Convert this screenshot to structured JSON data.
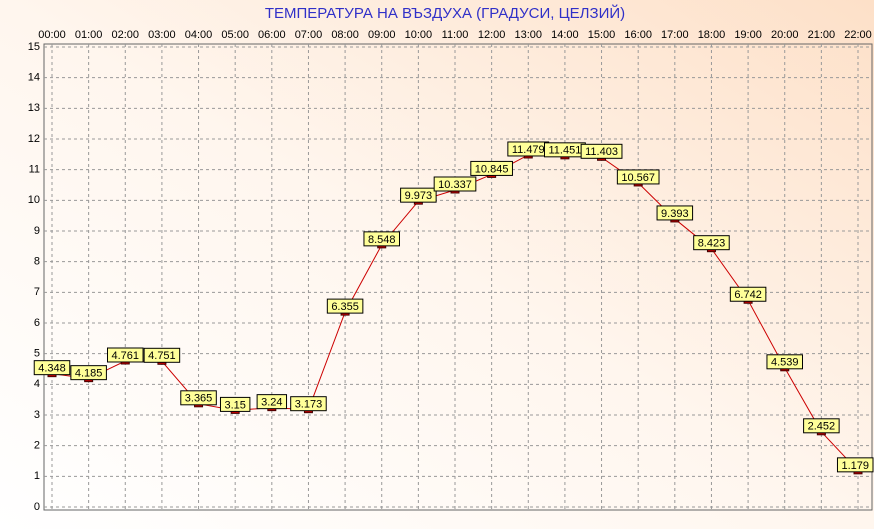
{
  "chart_data": {
    "type": "line",
    "title": "ТЕМПЕРАТУРА НА ВЪЗДУХА  (ГРАДУСИ, ЦЕЛЗИЙ)",
    "categories": [
      "00:00",
      "01:00",
      "02:00",
      "03:00",
      "04:00",
      "05:00",
      "06:00",
      "07:00",
      "08:00",
      "09:00",
      "10:00",
      "11:00",
      "12:00",
      "13:00",
      "14:00",
      "15:00",
      "16:00",
      "17:00",
      "18:00",
      "19:00",
      "20:00",
      "21:00",
      "22:00"
    ],
    "series": [
      {
        "name": "Температура",
        "color": "#cc0000",
        "values": [
          4.348,
          4.185,
          4.761,
          4.751,
          3.365,
          3.15,
          3.24,
          3.173,
          6.355,
          8.548,
          9.973,
          10.337,
          10.845,
          11.479,
          11.451,
          11.403,
          10.567,
          9.393,
          8.423,
          6.742,
          4.539,
          2.452,
          1.179
        ]
      }
    ],
    "ylim": [
      0,
      15
    ],
    "yticks": [
      0,
      1,
      2,
      3,
      4,
      5,
      6,
      7,
      8,
      9,
      10,
      11,
      12,
      13,
      14,
      15
    ],
    "grid": true
  }
}
